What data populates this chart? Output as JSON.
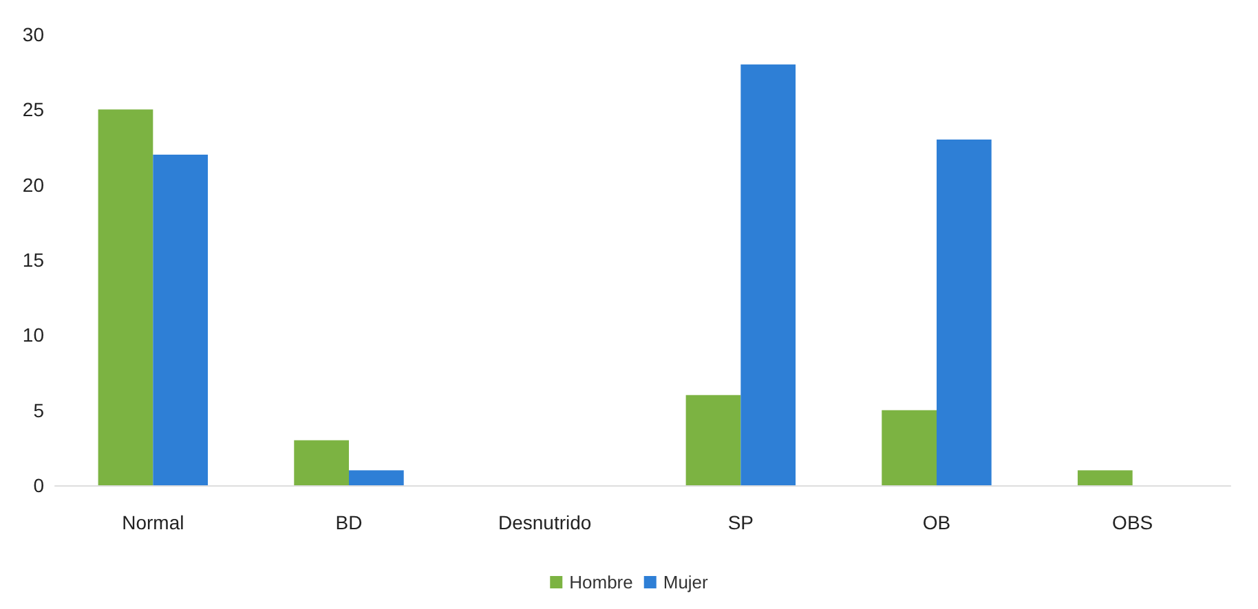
{
  "chart_data": {
    "type": "bar",
    "categories": [
      "Normal",
      "BD",
      "Desnutrido",
      "SP",
      "OB",
      "OBS"
    ],
    "series": [
      {
        "name": "Hombre",
        "color": "#7cb342",
        "values": [
          25,
          3,
          0,
          6,
          5,
          1
        ]
      },
      {
        "name": "Mujer",
        "color": "#2e7fd6",
        "values": [
          22,
          1,
          0,
          28,
          23,
          0
        ]
      }
    ],
    "ylim": [
      0,
      30
    ],
    "yticks": [
      0,
      5,
      10,
      15,
      20,
      25,
      30
    ],
    "grid": false,
    "legend": "bottom"
  }
}
